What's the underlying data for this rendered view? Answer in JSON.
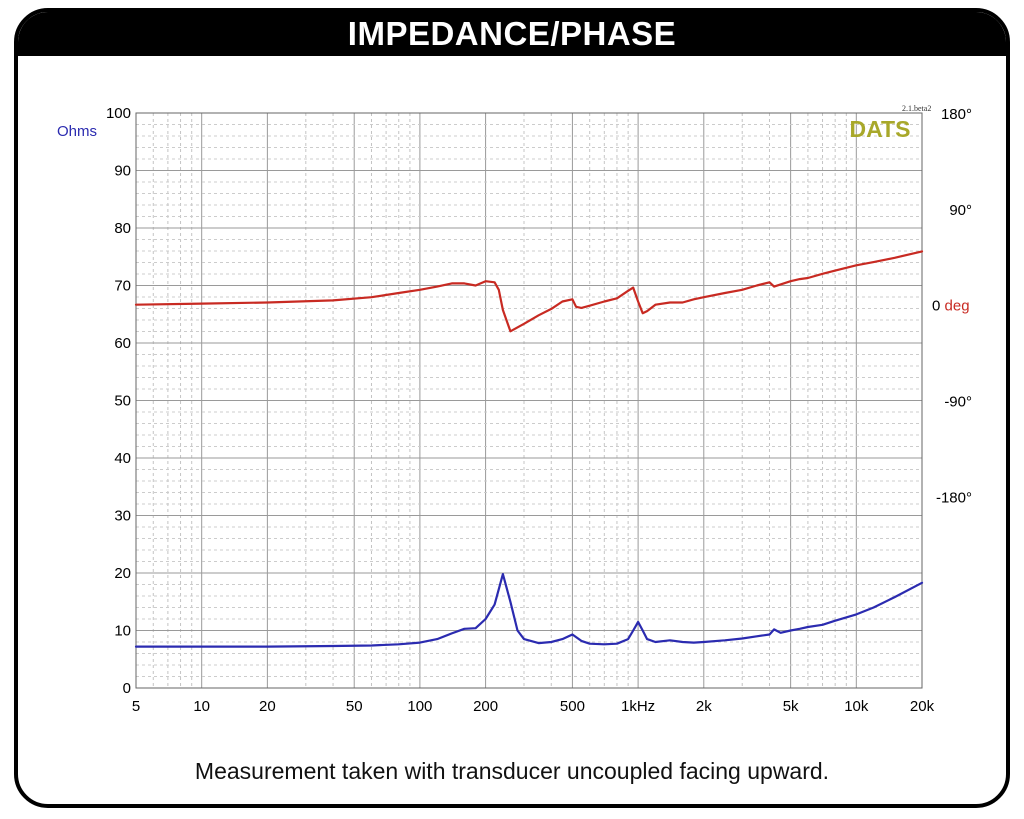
{
  "header": {
    "title": "IMPEDANCE/PHASE"
  },
  "caption": "Measurement taken with transducer uncoupled facing upward.",
  "chart_data": {
    "type": "line",
    "title": "IMPEDANCE/PHASE",
    "brand": "DATS",
    "version": "2.1.beta2",
    "xscale": "log",
    "xlim": [
      5,
      20000
    ],
    "x_ticks": [
      {
        "v": 5,
        "label": "5"
      },
      {
        "v": 10,
        "label": "10"
      },
      {
        "v": 20,
        "label": "20"
      },
      {
        "v": 50,
        "label": "50"
      },
      {
        "v": 100,
        "label": "100"
      },
      {
        "v": 200,
        "label": "200"
      },
      {
        "v": 500,
        "label": "500"
      },
      {
        "v": 1000,
        "label": "1kHz"
      },
      {
        "v": 2000,
        "label": "2k"
      },
      {
        "v": 5000,
        "label": "5k"
      },
      {
        "v": 10000,
        "label": "10k"
      },
      {
        "v": 20000,
        "label": "20k"
      }
    ],
    "y_left": {
      "label": "Ohms",
      "ylim": [
        0,
        100
      ],
      "ticks": [
        "0",
        "10",
        "20",
        "30",
        "40",
        "50",
        "60",
        "70",
        "80",
        "90",
        "100"
      ]
    },
    "y_right": {
      "label_value": "0",
      "label_unit": "deg",
      "ylim": [
        -360,
        180
      ],
      "ticks": [
        {
          "v": 180,
          "label": "180°"
        },
        {
          "v": 90,
          "label": "90°"
        },
        {
          "v": -90,
          "label": "-90°"
        },
        {
          "v": -180,
          "label": "-180°"
        }
      ]
    },
    "grid": true,
    "series": [
      {
        "axis": "left",
        "color": "#2b2bb0",
        "x": [
          5,
          10,
          20,
          40,
          60,
          80,
          100,
          120,
          140,
          160,
          180,
          200,
          220,
          240,
          260,
          280,
          300,
          350,
          400,
          450,
          500,
          550,
          600,
          700,
          800,
          900,
          950,
          1000,
          1050,
          1100,
          1200,
          1400,
          1600,
          1800,
          2000,
          2500,
          3000,
          3500,
          4000,
          4200,
          4500,
          5000,
          5500,
          6000,
          7000,
          8000,
          10000,
          12000,
          15000,
          20000
        ],
        "y": [
          7.2,
          7.2,
          7.2,
          7.3,
          7.4,
          7.6,
          7.9,
          8.5,
          9.5,
          10.3,
          10.4,
          12.0,
          14.5,
          19.8,
          15.0,
          10.0,
          8.5,
          7.8,
          8.0,
          8.5,
          9.3,
          8.2,
          7.7,
          7.6,
          7.7,
          8.5,
          10.0,
          11.5,
          10.0,
          8.5,
          8.0,
          8.3,
          8.0,
          7.9,
          8.0,
          8.3,
          8.6,
          9.0,
          9.3,
          10.2,
          9.6,
          10.0,
          10.3,
          10.6,
          11.0,
          11.7,
          12.8,
          14.0,
          15.8,
          18.3
        ]
      },
      {
        "axis": "right",
        "color": "#c82a22",
        "x": [
          5,
          10,
          20,
          40,
          60,
          80,
          100,
          120,
          140,
          160,
          180,
          200,
          220,
          230,
          240,
          260,
          300,
          350,
          400,
          450,
          500,
          520,
          550,
          600,
          700,
          800,
          900,
          950,
          1000,
          1050,
          1100,
          1200,
          1400,
          1600,
          1800,
          2000,
          2500,
          3000,
          3500,
          4000,
          4200,
          4500,
          5000,
          5500,
          6000,
          7000,
          8000,
          10000,
          12000,
          15000,
          20000
        ],
        "y": [
          0,
          1,
          2,
          4,
          7,
          11,
          14,
          17,
          20,
          20,
          18,
          22,
          21,
          14,
          -5,
          -25,
          -18,
          -10,
          -4,
          3,
          5,
          -2,
          -3,
          -1,
          3,
          6,
          13,
          16,
          3,
          -8,
          -6,
          0,
          2,
          2,
          5,
          7,
          11,
          14,
          18,
          21,
          17,
          19,
          22,
          24,
          25,
          29,
          32,
          37,
          40,
          44,
          50
        ]
      }
    ]
  }
}
